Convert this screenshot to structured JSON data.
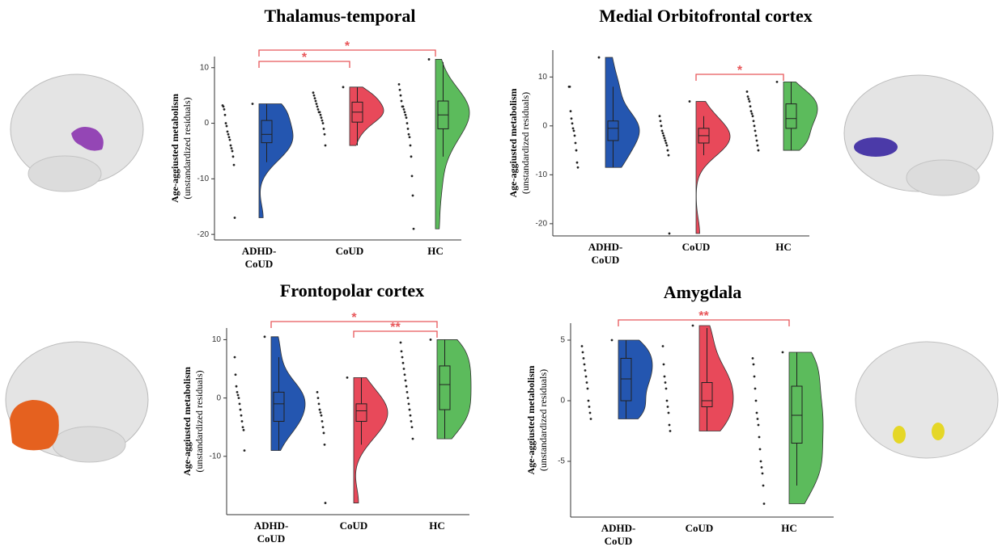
{
  "chart_data": [
    {
      "type": "raincloud",
      "title": "Thalamus-temporal",
      "ylabel": "Age-aggiusted metabolism",
      "ylabel_sub": "(unstandardized residuals)",
      "categories": [
        "ADHD-CoUD",
        "CoUD",
        "HC"
      ],
      "ylim": [
        -21,
        12
      ],
      "yticks": [
        10,
        0,
        -10,
        -20
      ],
      "groups": [
        {
          "color": "#2456b0",
          "values": [
            3.5,
            3.2,
            3.0,
            2.5,
            1.5,
            0,
            -0.5,
            -1.5,
            -2,
            -2.5,
            -3,
            -4,
            -4.5,
            -5,
            -6,
            -7.5,
            -17
          ],
          "box": {
            "whisker_low": -7,
            "q1": -3.5,
            "median": -2,
            "q3": 0.5,
            "whisker_high": 3.5
          }
        },
        {
          "color": "#e8495a",
          "values": [
            6.5,
            5.5,
            5,
            4.5,
            4,
            3.5,
            3,
            2.5,
            2,
            2,
            1.5,
            1,
            0.5,
            0,
            -1,
            -2,
            -4
          ],
          "box": {
            "whisker_low": -4,
            "q1": 0.2,
            "median": 2,
            "q3": 3.8,
            "whisker_high": 6.5
          }
        },
        {
          "color": "#5cbb5c",
          "values": [
            11.5,
            7,
            6,
            5,
            4,
            3,
            3,
            2.5,
            2,
            1.5,
            1,
            0,
            -1,
            -2,
            -2.5,
            -4,
            -6,
            -9.5,
            -13,
            -19
          ],
          "box": {
            "whisker_low": -6,
            "q1": -1,
            "median": 1.5,
            "q3": 4,
            "whisker_high": 11
          }
        }
      ],
      "comparisons": [
        {
          "groups": [
            "ADHD-CoUD",
            "CoUD"
          ],
          "label": "*"
        },
        {
          "groups": [
            "ADHD-CoUD",
            "HC"
          ],
          "label": "*"
        }
      ]
    },
    {
      "type": "raincloud",
      "title": "Medial Orbitofrontal cortex",
      "ylabel": "Age-aggiusted metabolism",
      "ylabel_sub": "(unstandardized residuals)",
      "categories": [
        "ADHD-CoUD",
        "CoUD",
        "HC"
      ],
      "ylim": [
        -22.5,
        15.5
      ],
      "yticks": [
        10,
        0,
        -10,
        -20
      ],
      "groups": [
        {
          "color": "#2456b0",
          "values": [
            14,
            8,
            8,
            3,
            1.5,
            0.5,
            -0.5,
            -1,
            -2,
            -3.5,
            -5,
            -7.5,
            -8.5
          ],
          "box": {
            "whisker_low": -8.5,
            "q1": -3,
            "median": -0.5,
            "q3": 1,
            "whisker_high": 8
          }
        },
        {
          "color": "#e8495a",
          "values": [
            5,
            2,
            1,
            0,
            -1,
            -1.5,
            -2,
            -2.5,
            -3,
            -3.5,
            -4,
            -5,
            -6,
            -22
          ],
          "box": {
            "whisker_low": -6,
            "q1": -3.5,
            "median": -2,
            "q3": -0.5,
            "whisker_high": 2
          }
        },
        {
          "color": "#5cbb5c",
          "values": [
            9,
            7,
            6,
            5.5,
            5,
            4,
            3,
            2.5,
            2,
            1,
            0,
            -1,
            -2,
            -3,
            -4,
            -5
          ],
          "box": {
            "whisker_low": -5,
            "q1": -0.5,
            "median": 1.5,
            "q3": 4.5,
            "whisker_high": 9
          }
        }
      ],
      "comparisons": [
        {
          "groups": [
            "CoUD",
            "HC"
          ],
          "label": "*"
        }
      ]
    },
    {
      "type": "raincloud",
      "title": "Frontopolar cortex",
      "ylabel": "Age-aggiusted metabolism",
      "ylabel_sub": "(unstandardized residuals)",
      "categories": [
        "ADHD-CoUD",
        "CoUD",
        "HC"
      ],
      "ylim": [
        -20,
        12
      ],
      "yticks": [
        10,
        0,
        -10
      ],
      "groups": [
        {
          "color": "#2456b0",
          "values": [
            10.5,
            7,
            4,
            2,
            1,
            0.5,
            0,
            -1,
            -2,
            -3,
            -4,
            -5,
            -5.5,
            -9
          ],
          "box": {
            "whisker_low": -9,
            "q1": -4,
            "median": -1,
            "q3": 1,
            "whisker_high": 7
          }
        },
        {
          "color": "#e8495a",
          "values": [
            3.5,
            1,
            0,
            -1,
            -2,
            -2.5,
            -3,
            -4,
            -5,
            -6,
            -8,
            -18
          ],
          "box": {
            "whisker_low": -8,
            "q1": -4,
            "median": -2.2,
            "q3": -1,
            "whisker_high": 3.5
          }
        },
        {
          "color": "#5cbb5c",
          "values": [
            10,
            9.5,
            8,
            7,
            6,
            5,
            4,
            3,
            2,
            1,
            0,
            -1,
            -2,
            -3,
            -4,
            -5,
            -7
          ],
          "box": {
            "whisker_low": -7,
            "q1": -2,
            "median": 2.3,
            "q3": 5.5,
            "whisker_high": 10
          }
        }
      ],
      "comparisons": [
        {
          "groups": [
            "CoUD",
            "HC"
          ],
          "label": "**"
        },
        {
          "groups": [
            "ADHD-CoUD",
            "HC"
          ],
          "label": "*"
        }
      ]
    },
    {
      "type": "raincloud",
      "title": "Amygdala",
      "ylabel": "Age-aggiusted metabolism",
      "ylabel_sub": "(unstandardized residuals)",
      "categories": [
        "ADHD-CoUD",
        "CoUD",
        "HC"
      ],
      "ylim": [
        -9.6,
        6.4
      ],
      "yticks": [
        5,
        0,
        -5
      ],
      "groups": [
        {
          "color": "#2456b0",
          "values": [
            5,
            4.5,
            4,
            3.5,
            3,
            2.5,
            2,
            1.5,
            1,
            0,
            -0.5,
            -1,
            -1.5
          ],
          "box": {
            "whisker_low": -1.5,
            "q1": 0,
            "median": 1.8,
            "q3": 3.5,
            "whisker_high": 5
          }
        },
        {
          "color": "#e8495a",
          "values": [
            6.2,
            4.5,
            3,
            2,
            1.5,
            1,
            0,
            -0.5,
            -1,
            -2,
            -2.5
          ],
          "box": {
            "whisker_low": -2.5,
            "q1": -0.5,
            "median": 0,
            "q3": 1.5,
            "whisker_high": 6
          }
        },
        {
          "color": "#5cbb5c",
          "values": [
            4,
            3.5,
            3,
            2,
            1,
            0,
            -1,
            -1.5,
            -2,
            -3,
            -4,
            -5,
            -5.5,
            -6,
            -7,
            -8.5
          ],
          "box": {
            "whisker_low": -7,
            "q1": -3.5,
            "median": -1.2,
            "q3": 1.2,
            "whisker_high": 4
          }
        }
      ],
      "comparisons": [
        {
          "groups": [
            "ADHD-CoUD",
            "HC"
          ],
          "label": "**"
        }
      ]
    }
  ]
}
